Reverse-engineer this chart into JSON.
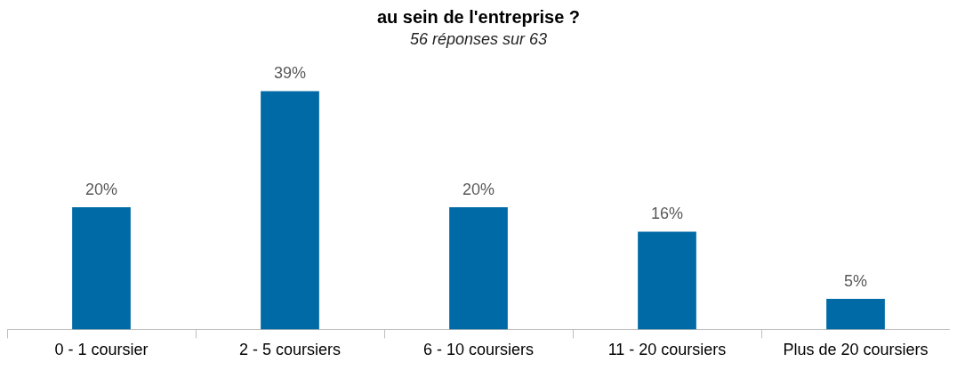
{
  "chart_data": {
    "type": "bar",
    "title": "au sein de l'entreprise ?",
    "subtitle": "56 réponses sur 63",
    "categories": [
      "0 - 1 coursier",
      "2 - 5 coursiers",
      "6 - 10 coursiers",
      "11 - 20 coursiers",
      "Plus de 20 coursiers"
    ],
    "series": [
      {
        "color": "#006aa6",
        "values": [
          20,
          39,
          20,
          16,
          5
        ],
        "value_labels": [
          "20%",
          "39%",
          "20%",
          "16%",
          "5%"
        ]
      }
    ],
    "grid": false,
    "legend": false,
    "tick_labels": "x"
  }
}
